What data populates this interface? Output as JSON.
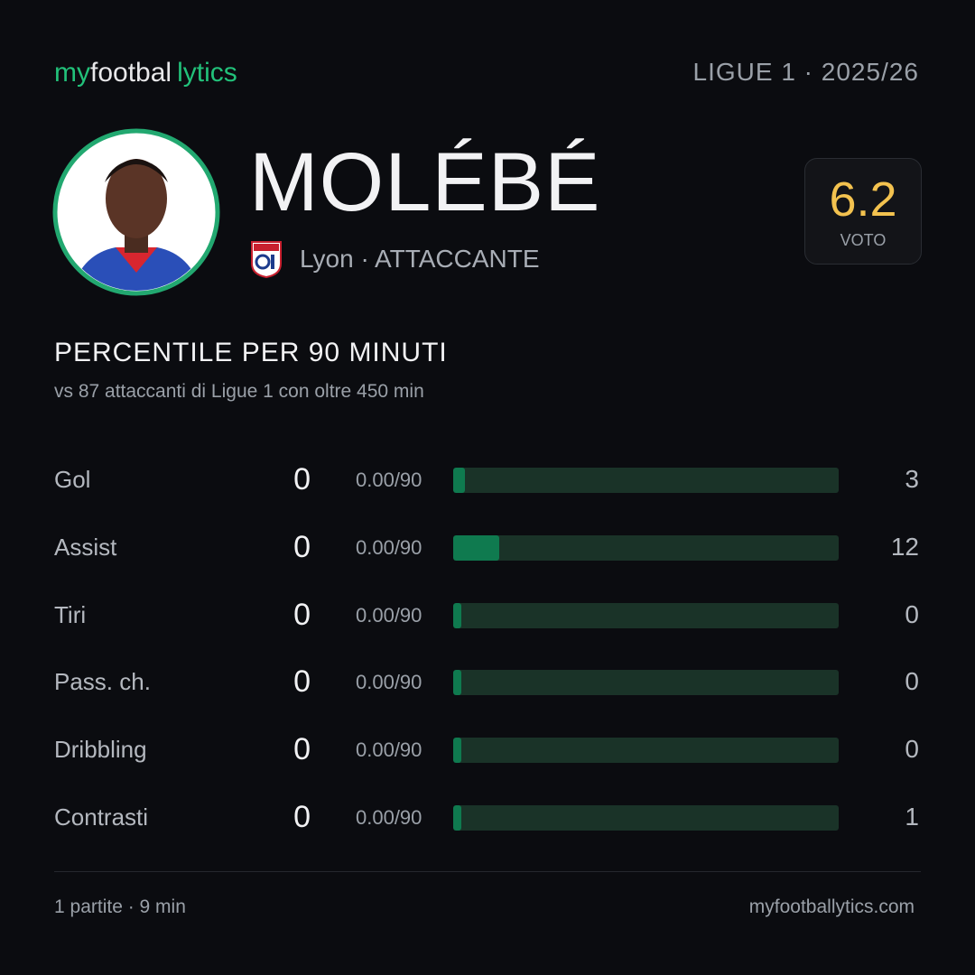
{
  "header": {
    "brand": [
      "my",
      "footbal",
      "lytics"
    ],
    "league": "LIGUE 1 · 2025/26"
  },
  "player": {
    "name": "MOLÉBÉ",
    "club": "Lyon",
    "position": "· ATTACCANTE"
  },
  "rating": {
    "value": 6.2,
    "label": "VOTO"
  },
  "section": {
    "title": "PERCENTILE  PER 90 MINUTI",
    "subtitle": "vs 87 attaccanti  di Ligue 1 con oltre 450 min"
  },
  "stats": [
    {
      "label": "Gol",
      "value": 0,
      "per90": "0.00/90",
      "percentile": 3
    },
    {
      "label": "Assist",
      "value": 0,
      "per90": "0.00/90",
      "percentile": 12
    },
    {
      "label": "Tiri",
      "value": 0,
      "per90": "0.00/90",
      "percentile": 0
    },
    {
      "label": "Pass. ch.",
      "value": 0,
      "per90": "0.00/90",
      "percentile": 0
    },
    {
      "label": "Dribbling",
      "value": 0,
      "per90": "0.00/90",
      "percentile": 0
    },
    {
      "label": "Contrasti",
      "value": 0,
      "per90": "0.00/90",
      "percentile": 1
    }
  ],
  "footer": {
    "summary": "1 partite · 9 min",
    "site": "myfootballytics.com"
  }
}
